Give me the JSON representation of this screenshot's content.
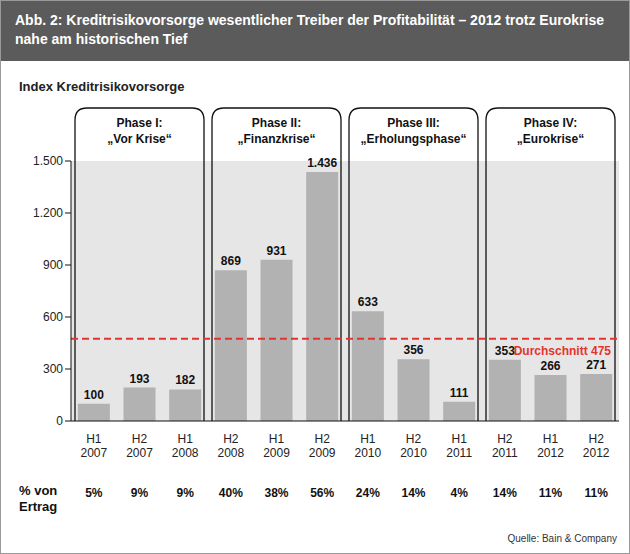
{
  "chart_data": {
    "type": "bar",
    "title": "Abb. 2: Kreditrisikovorsorge wesentlicher Treiber der Profitabilität – 2012 trotz Eurokrise nahe am historischen Tief",
    "subtitle": "Index Kreditrisikovorsorge",
    "categories": [
      "H1 2007",
      "H2 2007",
      "H1 2008",
      "H2 2008",
      "H1 2009",
      "H2 2009",
      "H1 2010",
      "H2 2010",
      "H1 2011",
      "H2 2011",
      "H1 2012",
      "H2 2012"
    ],
    "values": [
      100,
      193,
      182,
      869,
      931,
      1436,
      633,
      356,
      111,
      353,
      266,
      271
    ],
    "value_labels": [
      "100",
      "193",
      "182",
      "869",
      "931",
      "1.436",
      "633",
      "356",
      "111",
      "353",
      "266",
      "271"
    ],
    "color": "#b2b2b2",
    "ylim": [
      0,
      1500
    ],
    "yticks": [
      0,
      300,
      600,
      900,
      {
        "value": 1200,
        "label": "1.200"
      },
      {
        "value": 1500,
        "label": "1.500"
      }
    ],
    "grid": false,
    "data_labels": true,
    "reference_line": {
      "value": 475,
      "label": "Durchschnitt 475",
      "color": "#e3342f",
      "line_style": "dashed"
    },
    "phases": [
      {
        "title": "Phase I:",
        "name": "„Vor Krise“",
        "categories": [
          "H1 2007",
          "H2 2007",
          "H1 2008"
        ]
      },
      {
        "title": "Phase II:",
        "name": "„Finanzkrise“",
        "categories": [
          "H2 2008",
          "H1 2009",
          "H2 2009"
        ]
      },
      {
        "title": "Phase III:",
        "name": "„Erholungsphase“",
        "categories": [
          "H1 2010",
          "H2 2010",
          "H1 2011"
        ]
      },
      {
        "title": "Phase IV:",
        "name": "„Eurokrise“",
        "categories": [
          "H2 2011",
          "H1 2012",
          "H2 2012"
        ]
      }
    ],
    "share_of_income": {
      "label": "% von Ertrag",
      "values": [
        5,
        9,
        9,
        40,
        38,
        56,
        24,
        14,
        4,
        14,
        11,
        11
      ],
      "value_labels": [
        "5%",
        "9%",
        "9%",
        "40%",
        "38%",
        "56%",
        "24%",
        "14%",
        "4%",
        "14%",
        "11%",
        "11%"
      ]
    },
    "source": "Quelle: Bain & Company"
  }
}
